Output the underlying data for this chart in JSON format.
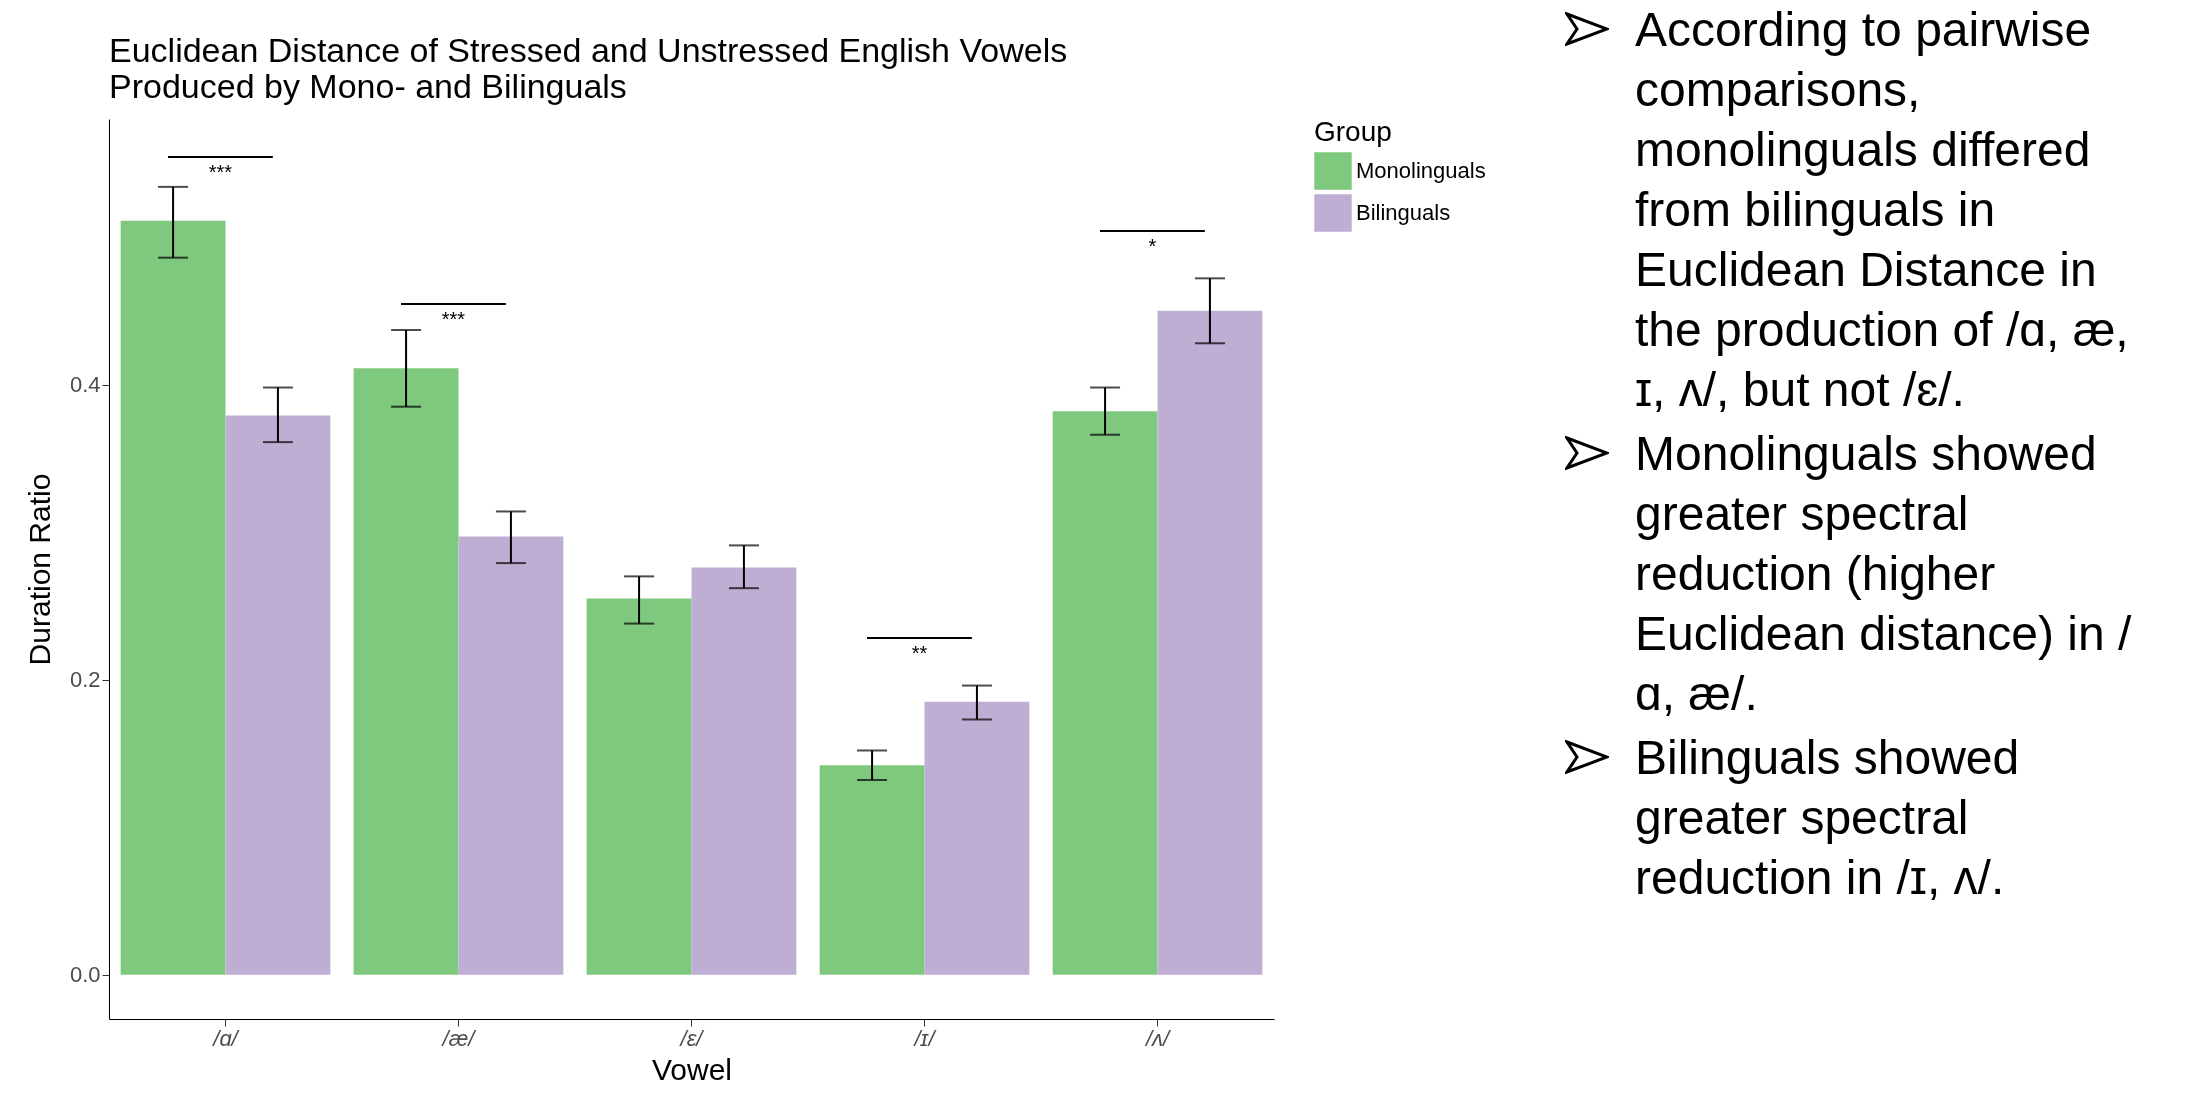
{
  "chart_data": {
    "type": "bar",
    "title": "Euclidean Distance of Stressed and Unstressed English Vowels\nProduced by Mono- and Bilinguals",
    "xlabel": "Vowel",
    "ylabel": "Duration Ratio",
    "legend_title": "Group",
    "legend": "right",
    "grid": false,
    "categories": [
      "/ɑ/",
      "/æ/",
      "/ɛ/",
      "/ɪ/",
      "/ʌ/"
    ],
    "series": [
      {
        "name": "Monolinguals",
        "color": "#7fc97f",
        "values": [
          0.511,
          0.411,
          0.255,
          0.142,
          0.382
        ],
        "errors": [
          [
            0.486,
            0.534
          ],
          [
            0.385,
            0.437
          ],
          [
            0.238,
            0.27
          ],
          [
            0.132,
            0.152
          ],
          [
            0.366,
            0.398
          ]
        ]
      },
      {
        "name": "Bilinguals",
        "color": "#beaed4",
        "values": [
          0.379,
          0.297,
          0.276,
          0.185,
          0.45
        ],
        "errors": [
          [
            0.361,
            0.398
          ],
          [
            0.279,
            0.314
          ],
          [
            0.262,
            0.291
          ],
          [
            0.173,
            0.196
          ],
          [
            0.428,
            0.472
          ]
        ]
      }
    ],
    "ylim": [
      -0.03,
      0.58
    ],
    "yticks": [
      {
        "value": 0,
        "label": "0.0"
      },
      0.2,
      0.4
    ],
    "annotations": [
      "***",
      "***",
      "**",
      "*",
      "According to pairwise comparisons, monolinguals differed from bilinguals in Euclidean Distance in the production of /ɑ, æ, ɪ, ʌ/, but not /ɛ/.",
      "Monolinguals showed greater spectral reduction (higher Euclidean distance) in /ɑ, æ/.",
      "Bilinguals showed greater spectral reduction in /ɪ, ʌ/."
    ]
  }
}
